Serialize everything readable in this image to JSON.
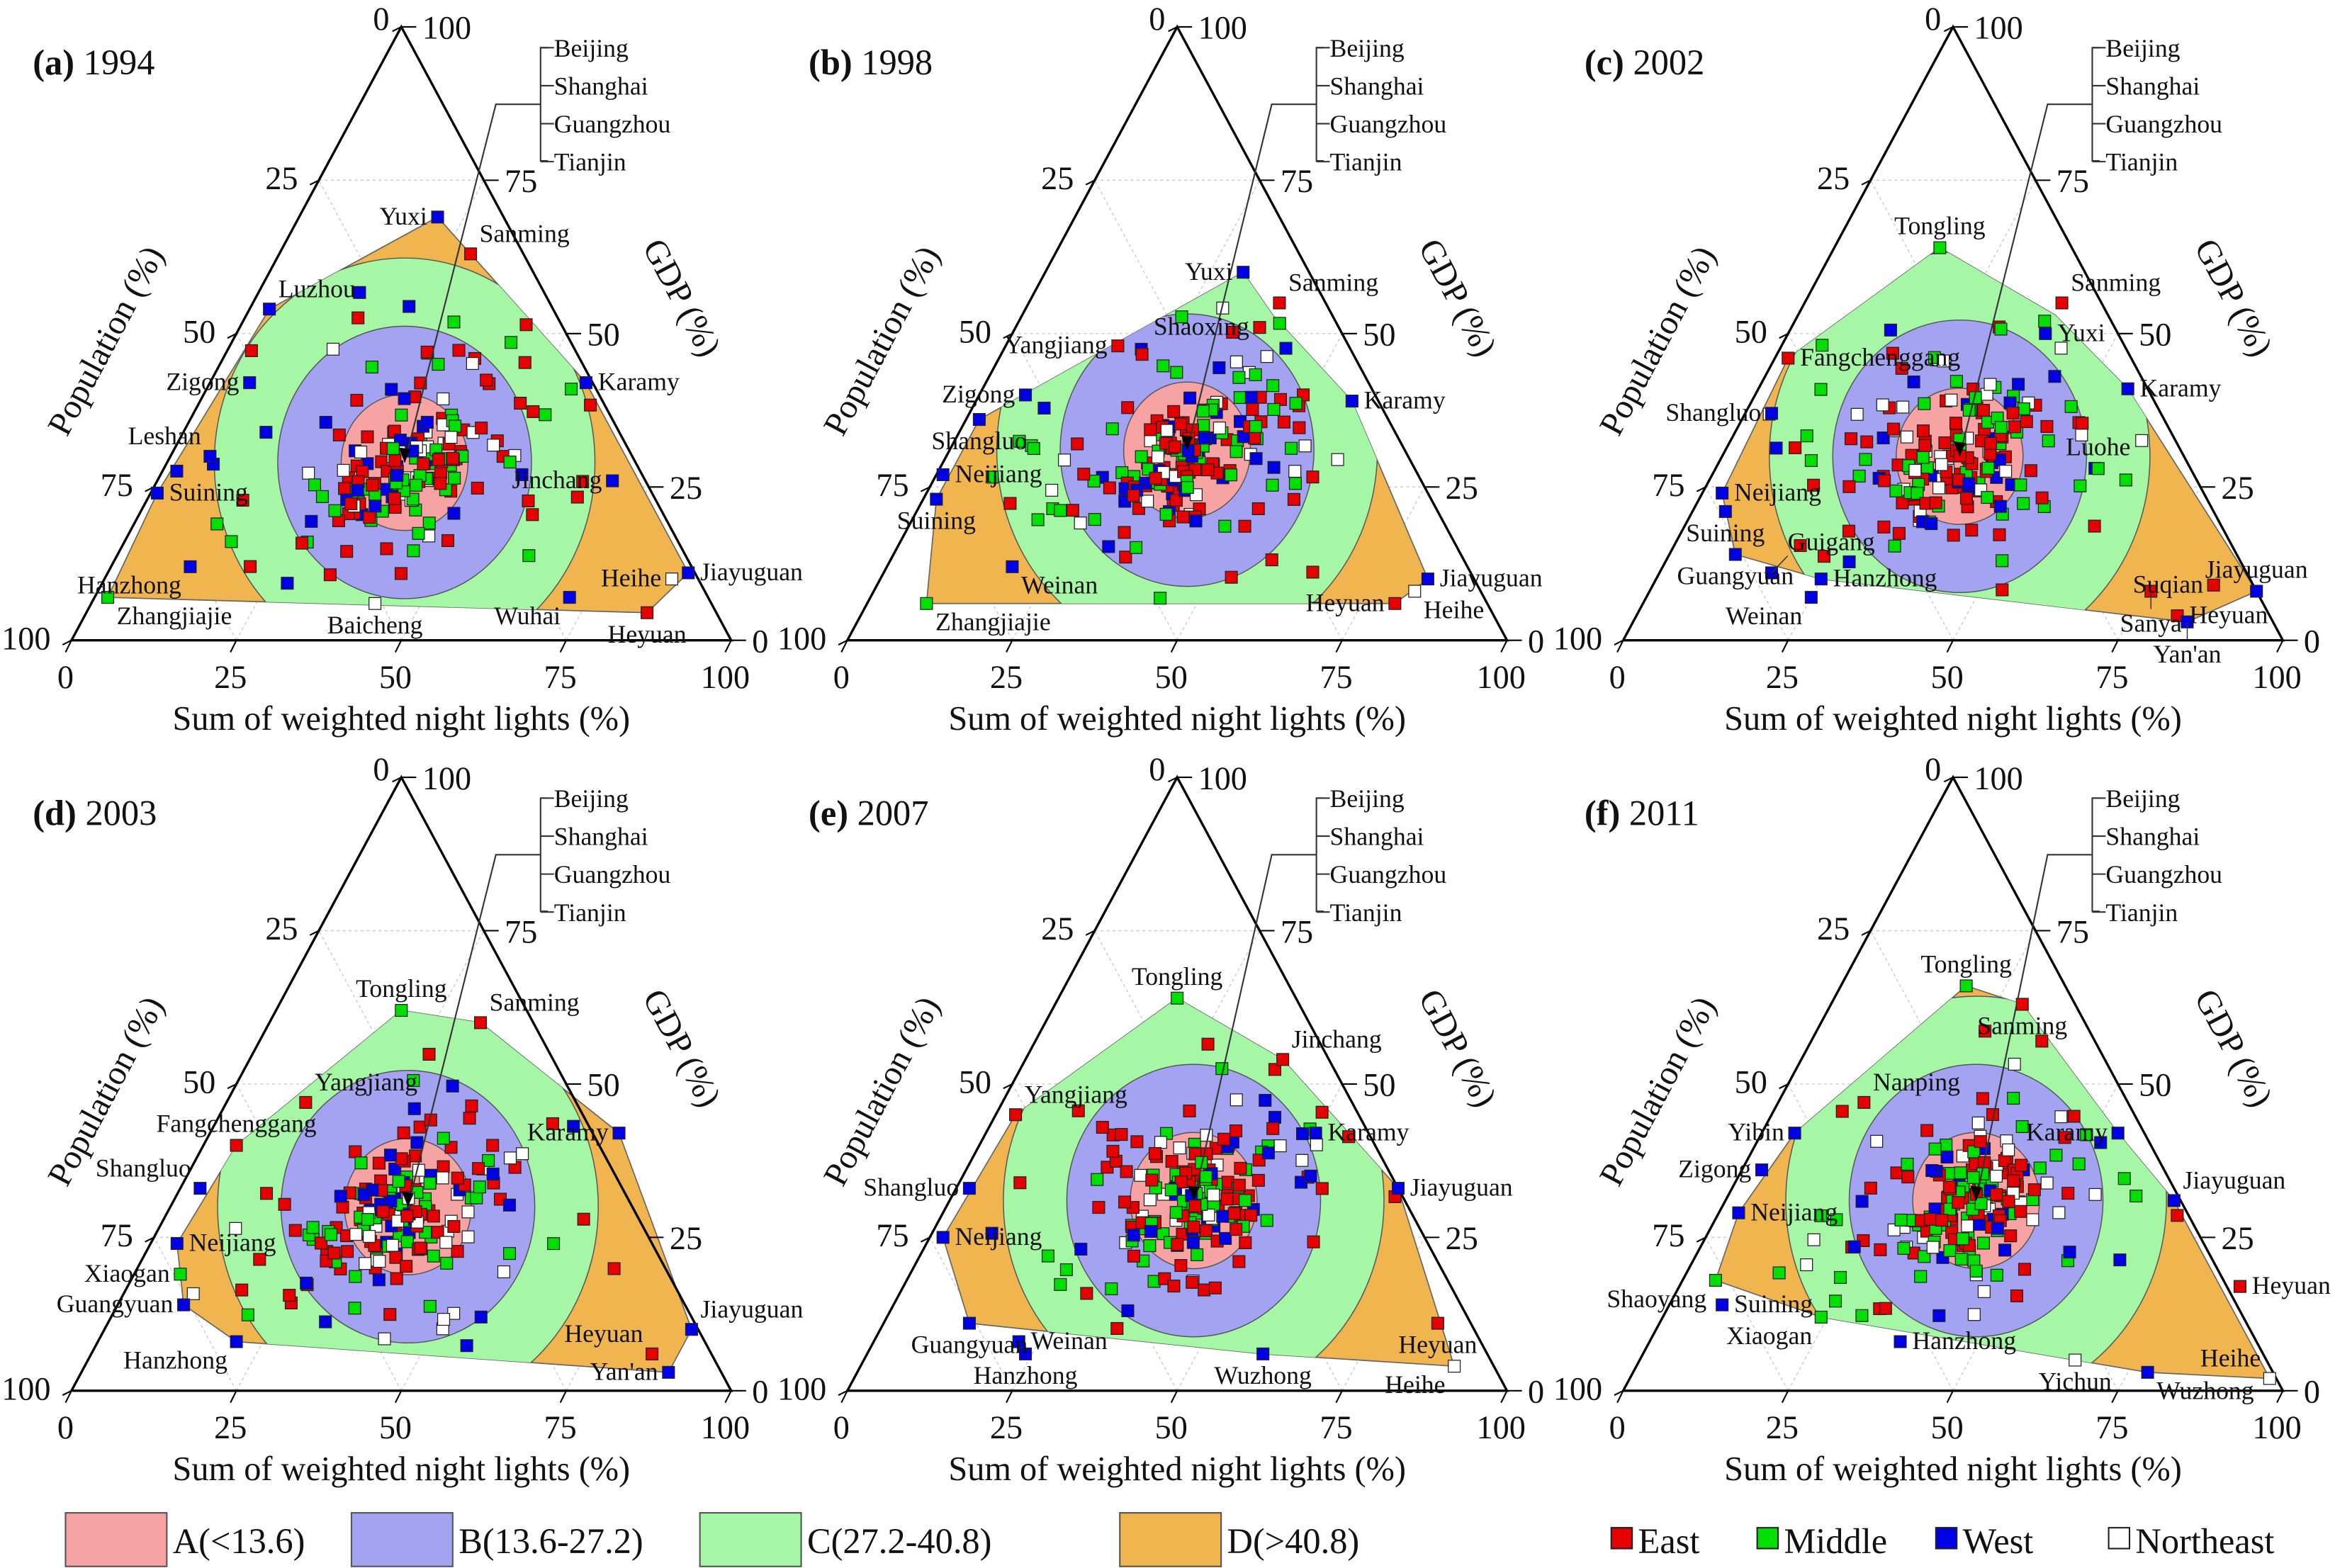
{
  "chart_data": {
    "type": "ternary-scatter",
    "axes": {
      "bottom": "Sum of weighted night lights (%)",
      "left": "Population (%)",
      "right": "GDP (%)",
      "ticks": [
        "0",
        "25",
        "50",
        "75",
        "100"
      ]
    },
    "zones": [
      {
        "label": "A(<13.6)",
        "max_distance": 13.6,
        "color": "#f7a3a3"
      },
      {
        "label": "B(13.6-27.2)",
        "max_distance": 27.2,
        "color": "#a3a3f2"
      },
      {
        "label": "C(27.2-40.8)",
        "max_distance": 40.8,
        "color": "#a5f7a5"
      },
      {
        "label": "D(>40.8)",
        "max_distance": null,
        "color": "#f0b54e"
      }
    ],
    "regions": [
      {
        "label": "East",
        "color": "#e60000"
      },
      {
        "label": "Middle",
        "color": "#00e000"
      },
      {
        "label": "West",
        "color": "#0000e6"
      },
      {
        "label": "Northeast",
        "color": "#ffffff"
      }
    ],
    "center_group": [
      "Beijing",
      "Shanghai",
      "Guangzhou",
      "Tianjin"
    ],
    "panels": [
      {
        "letter": "(a)",
        "year": "1994",
        "centroid": [
          36,
          29
        ],
        "hull": [
          [
            2,
            7
          ],
          [
            1,
            24
          ],
          [
            3,
            54
          ],
          [
            21,
            69
          ],
          [
            29,
            63
          ],
          [
            57,
            42
          ],
          [
            88,
            11
          ],
          [
            85,
            4.5
          ]
        ],
        "cities": [
          {
            "name": "Yuxi",
            "nl": 21,
            "gdp": 69,
            "region": "West",
            "pos": "left"
          },
          {
            "name": "Sanming",
            "nl": 29,
            "gdp": 63,
            "region": "East",
            "pos": "above-right"
          },
          {
            "name": "Luzhou",
            "nl": 3,
            "gdp": 54,
            "region": "West",
            "pos": "above-right"
          },
          {
            "name": "Zigong",
            "nl": 6,
            "gdp": 42,
            "region": "West",
            "pos": "left"
          },
          {
            "name": "Leshan",
            "nl": 6,
            "gdp": 30,
            "region": "West",
            "pos": "above-left"
          },
          {
            "name": "Suining",
            "nl": 1,
            "gdp": 24,
            "region": "West",
            "pos": "left"
          },
          {
            "name": "Hanzhong",
            "nl": 12,
            "gdp": 12,
            "region": "West",
            "pos": "below-left"
          },
          {
            "name": "Zhangjiajie",
            "nl": 2,
            "gdp": 7,
            "region": "Middle",
            "pos": "below-right"
          },
          {
            "name": "Baicheng",
            "nl": 43,
            "gdp": 6,
            "region": "Northeast",
            "pos": "below"
          },
          {
            "name": "Wuhai",
            "nl": 72,
            "gdp": 7,
            "region": "West",
            "pos": "below-left"
          },
          {
            "name": "Heyuan",
            "nl": 85,
            "gdp": 4.5,
            "region": "East",
            "pos": "below"
          },
          {
            "name": "Jiayuguan",
            "nl": 88,
            "gdp": 11,
            "region": "West",
            "pos": "right"
          },
          {
            "name": "Heihe",
            "nl": 86,
            "gdp": 10,
            "region": "Northeast",
            "pos": "above-right"
          },
          {
            "name": "Jinchang",
            "nl": 69,
            "gdp": 26,
            "region": "West",
            "pos": "above-right"
          },
          {
            "name": "Karamy",
            "nl": 57,
            "gdp": 42,
            "region": "West",
            "pos": "right"
          }
        ]
      },
      {
        "letter": "(b)",
        "year": "1998",
        "centroid": [
          36,
          31
        ],
        "hull": [
          [
            9,
            6
          ],
          [
            2,
            23
          ],
          [
            2,
            36
          ],
          [
            30,
            60
          ],
          [
            38,
            53
          ],
          [
            57,
            39
          ],
          [
            83,
            10
          ],
          [
            80,
            6
          ]
        ],
        "cities": [
          {
            "name": "Yuxi",
            "nl": 30,
            "gdp": 60,
            "region": "West",
            "pos": "left"
          },
          {
            "name": "Sanming",
            "nl": 38,
            "gdp": 55,
            "region": "East",
            "pos": "above-right"
          },
          {
            "name": "Shaoxing",
            "nl": 37,
            "gdp": 51,
            "region": "East",
            "pos": "right"
          },
          {
            "name": "Yangjiang",
            "nl": 17,
            "gdp": 48,
            "region": "East",
            "pos": "above"
          },
          {
            "name": "Zigong",
            "nl": 7,
            "gdp": 40,
            "region": "West",
            "pos": "above"
          },
          {
            "name": "Shangluo",
            "nl": 2,
            "gdp": 36,
            "region": "West",
            "pos": "left"
          },
          {
            "name": "Neijiang",
            "nl": 1,
            "gdp": 27,
            "region": "West",
            "pos": "left"
          },
          {
            "name": "Suining",
            "nl": 2,
            "gdp": 23,
            "region": "West",
            "pos": "left"
          },
          {
            "name": "Zhangjiajie",
            "nl": 9,
            "gdp": 6,
            "region": "Middle",
            "pos": "below-right"
          },
          {
            "name": "Weinan",
            "nl": 19,
            "gdp": 12,
            "region": "West",
            "pos": "below-right"
          },
          {
            "name": "Karamy",
            "nl": 57,
            "gdp": 39,
            "region": "West",
            "pos": "right"
          },
          {
            "name": "Jiayuguan",
            "nl": 83,
            "gdp": 10,
            "region": "West",
            "pos": "right"
          },
          {
            "name": "Heihe",
            "nl": 82,
            "gdp": 8,
            "region": "Northeast",
            "pos": "below-right"
          },
          {
            "name": "Heyuan",
            "nl": 80,
            "gdp": 6,
            "region": "East",
            "pos": "below"
          }
        ]
      },
      {
        "letter": "(c)",
        "year": "2002",
        "centroid": [
          36,
          30
        ],
        "hull": [
          [
            3,
            24
          ],
          [
            2,
            46
          ],
          [
            16,
            64
          ],
          [
            39,
            53
          ],
          [
            56,
            41
          ],
          [
            92,
            8
          ],
          [
            84,
            3
          ],
          [
            25,
            10
          ],
          [
            10,
            14
          ]
        ],
        "cities": [
          {
            "name": "Fangchenggang",
            "nl": 2,
            "gdp": 46,
            "region": "East",
            "pos": "above"
          },
          {
            "name": "Tongling",
            "nl": 16,
            "gdp": 64,
            "region": "Middle",
            "pos": "above"
          },
          {
            "name": "Sanming",
            "nl": 39,
            "gdp": 55,
            "region": "East",
            "pos": "above-right"
          },
          {
            "name": "Yuxi",
            "nl": 39,
            "gdp": 50,
            "region": "West",
            "pos": "right"
          },
          {
            "name": "Shangluo",
            "nl": 4,
            "gdp": 37,
            "region": "West",
            "pos": "left"
          },
          {
            "name": "Karamy",
            "nl": 56,
            "gdp": 41,
            "region": "West",
            "pos": "right"
          },
          {
            "name": "Luohe",
            "nl": 58,
            "gdp": 28,
            "region": "Middle",
            "pos": "above"
          },
          {
            "name": "Neijiang",
            "nl": 3,
            "gdp": 24,
            "region": "West",
            "pos": "left"
          },
          {
            "name": "Suining",
            "nl": 5,
            "gdp": 21,
            "region": "West",
            "pos": "left"
          },
          {
            "name": "Guangyuan",
            "nl": 10,
            "gdp": 14,
            "region": "West",
            "pos": "left"
          },
          {
            "name": "Guigang",
            "nl": 17,
            "gdp": 11,
            "region": "West",
            "pos": "below-left"
          },
          {
            "name": "Weinan",
            "nl": 25,
            "gdp": 7,
            "region": "West",
            "pos": "below-left"
          },
          {
            "name": "Hanzhong",
            "nl": 25,
            "gdp": 10,
            "region": "West",
            "pos": "right"
          },
          {
            "name": "Jiayuguan",
            "nl": 92,
            "gdp": 8,
            "region": "West",
            "pos": "above"
          },
          {
            "name": "Suqian",
            "nl": 85,
            "gdp": 9,
            "region": "East",
            "pos": "left"
          },
          {
            "name": "Sanya",
            "nl": 76,
            "gdp": 8,
            "region": "East",
            "pos": "above"
          },
          {
            "name": "Heyuan",
            "nl": 82,
            "gdp": 4,
            "region": "East",
            "pos": "below-left"
          },
          {
            "name": "Yan'an",
            "nl": 84,
            "gdp": 3,
            "region": "West",
            "pos": "below"
          }
        ]
      },
      {
        "letter": "(d)",
        "year": "2003",
        "centroid": [
          36,
          30
        ],
        "hull": [
          [
            4,
            24
          ],
          [
            5,
            40
          ],
          [
            19,
            62
          ],
          [
            32,
            60
          ],
          [
            62,
            42
          ],
          [
            89,
            10
          ],
          [
            89,
            3
          ],
          [
            21,
            8
          ],
          [
            10,
            14
          ]
        ],
        "cities": [
          {
            "name": "Fangchenggang",
            "nl": 5,
            "gdp": 40,
            "region": "East",
            "pos": "above"
          },
          {
            "name": "Tongling",
            "nl": 19,
            "gdp": 62,
            "region": "Middle",
            "pos": "above"
          },
          {
            "name": "Sanming",
            "nl": 32,
            "gdp": 60,
            "region": "East",
            "pos": "above-right"
          },
          {
            "name": "Yangjiang",
            "nl": 12,
            "gdp": 47,
            "region": "East",
            "pos": "above-right"
          },
          {
            "name": "Shangluo",
            "nl": 3,
            "gdp": 33,
            "region": "West",
            "pos": "above-left"
          },
          {
            "name": "Karamy",
            "nl": 62,
            "gdp": 42,
            "region": "West",
            "pos": "right"
          },
          {
            "name": "Neijiang",
            "nl": 4,
            "gdp": 24,
            "region": "West",
            "pos": "left"
          },
          {
            "name": "Xiaogan",
            "nl": 7,
            "gdp": 19,
            "region": "Middle",
            "pos": "left"
          },
          {
            "name": "Guangyuan",
            "nl": 10,
            "gdp": 14,
            "region": "West",
            "pos": "left"
          },
          {
            "name": "Hanzhong",
            "nl": 21,
            "gdp": 8,
            "region": "West",
            "pos": "below-left"
          },
          {
            "name": "Jiayuguan",
            "nl": 89,
            "gdp": 10,
            "region": "West",
            "pos": "above-right"
          },
          {
            "name": "Heyuan",
            "nl": 85,
            "gdp": 6,
            "region": "East",
            "pos": "above-left"
          },
          {
            "name": "Yan'an",
            "nl": 89,
            "gdp": 3,
            "region": "West",
            "pos": "left"
          }
        ]
      },
      {
        "letter": "(e)",
        "year": "2007",
        "centroid": [
          37,
          31
        ],
        "hull": [
          [
            2,
            25
          ],
          [
            3,
            45
          ],
          [
            18,
            64
          ],
          [
            39,
            54
          ],
          [
            67,
            33
          ],
          [
            90,
            4
          ],
          [
            60,
            6
          ],
          [
            13,
            11
          ]
        ],
        "cities": [
          {
            "name": "Tongling",
            "nl": 18,
            "gdp": 64,
            "region": "Middle",
            "pos": "above"
          },
          {
            "name": "Jinchang",
            "nl": 39,
            "gdp": 54,
            "region": "East",
            "pos": "above-right"
          },
          {
            "name": "Yangjiang",
            "nl": 3,
            "gdp": 45,
            "region": "East",
            "pos": "above-right"
          },
          {
            "name": "Shangluo",
            "nl": 2,
            "gdp": 33,
            "region": "West",
            "pos": "above-left"
          },
          {
            "name": "Karamy",
            "nl": 50,
            "gdp": 42,
            "region": "West",
            "pos": "right"
          },
          {
            "name": "Jiayuguan",
            "nl": 67,
            "gdp": 33,
            "region": "West",
            "pos": "right"
          },
          {
            "name": "Neijiang",
            "nl": 2,
            "gdp": 25,
            "region": "West",
            "pos": "left"
          },
          {
            "name": "Guangyuan",
            "nl": 13,
            "gdp": 11,
            "region": "West",
            "pos": "below"
          },
          {
            "name": "Weinan",
            "nl": 22,
            "gdp": 8,
            "region": "West",
            "pos": "right"
          },
          {
            "name": "Hanzhong",
            "nl": 24,
            "gdp": 6,
            "region": "West",
            "pos": "below"
          },
          {
            "name": "Wuzhong",
            "nl": 60,
            "gdp": 6,
            "region": "West",
            "pos": "below"
          },
          {
            "name": "Heyuan",
            "nl": 84,
            "gdp": 11,
            "region": "East",
            "pos": "below"
          },
          {
            "name": "Heihe",
            "nl": 90,
            "gdp": 4,
            "region": "Northeast",
            "pos": "below-left"
          }
        ]
      },
      {
        "letter": "(f)",
        "year": "2011",
        "centroid": [
          38,
          31
        ],
        "hull": [
          [
            3,
            29
          ],
          [
            5,
            42
          ],
          [
            19,
            66
          ],
          [
            29,
            63
          ],
          [
            54,
            42
          ],
          [
            68,
            31
          ],
          [
            97,
            2
          ],
          [
            78,
            3
          ],
          [
            24,
            12
          ],
          [
            5,
            18
          ]
        ],
        "cities": [
          {
            "name": "Tongling",
            "nl": 19,
            "gdp": 66,
            "region": "Middle",
            "pos": "above"
          },
          {
            "name": "Sanming",
            "nl": 29,
            "gdp": 63,
            "region": "East",
            "pos": "below"
          },
          {
            "name": "Nanping",
            "nl": 13,
            "gdp": 47,
            "region": "East",
            "pos": "above-right"
          },
          {
            "name": "Yibin",
            "nl": 5,
            "gdp": 42,
            "region": "West",
            "pos": "above"
          },
          {
            "name": "Zigong",
            "nl": 3,
            "gdp": 36,
            "region": "West",
            "pos": "above-left"
          },
          {
            "name": "Karamy",
            "nl": 54,
            "gdp": 42,
            "region": "West",
            "pos": "above"
          },
          {
            "name": "Jiayuguan",
            "nl": 68,
            "gdp": 31,
            "region": "West",
            "pos": "above-right"
          },
          {
            "name": "Neijiang",
            "nl": 3,
            "gdp": 29,
            "region": "West",
            "pos": "below-left"
          },
          {
            "name": "Shaoyang",
            "nl": 5,
            "gdp": 18,
            "region": "Middle",
            "pos": "below-left"
          },
          {
            "name": "Suining",
            "nl": 8,
            "gdp": 14,
            "region": "West",
            "pos": "below"
          },
          {
            "name": "Xiaogan",
            "nl": 24,
            "gdp": 12,
            "region": "Middle",
            "pos": "below-left"
          },
          {
            "name": "Hanzhong",
            "nl": 38,
            "gdp": 8,
            "region": "West",
            "pos": "below-left"
          },
          {
            "name": "Yichun",
            "nl": 66,
            "gdp": 5,
            "region": "Northeast",
            "pos": "below"
          },
          {
            "name": "Heyuan",
            "nl": 85,
            "gdp": 17,
            "region": "East",
            "pos": "right"
          },
          {
            "name": "Heihe",
            "nl": 97,
            "gdp": 2,
            "region": "Northeast",
            "pos": "above-left"
          },
          {
            "name": "Wuzhong",
            "nl": 78,
            "gdp": 3,
            "region": "West",
            "pos": "below-right"
          }
        ]
      }
    ]
  }
}
